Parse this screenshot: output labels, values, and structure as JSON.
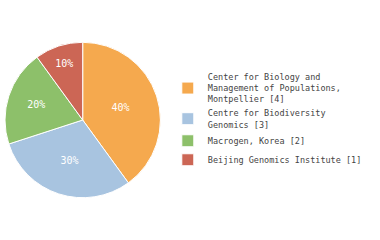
{
  "chart_data": {
    "type": "pie",
    "categories": [
      "Center for Biology and\nManagement of Populations,\nMontpellier [4]",
      "Centre for Biodiversity\nGenomics [3]",
      "Macrogen, Korea [2]",
      "Beijing Genomics Institute [1]"
    ],
    "values": [
      40,
      30,
      20,
      10
    ],
    "value_labels": [
      "40%",
      "30%",
      "20%",
      "10%"
    ],
    "colors": [
      "#f5a94e",
      "#a8c4e0",
      "#8dc06a",
      "#cc6655"
    ],
    "data_labels": true,
    "legend": "right"
  }
}
